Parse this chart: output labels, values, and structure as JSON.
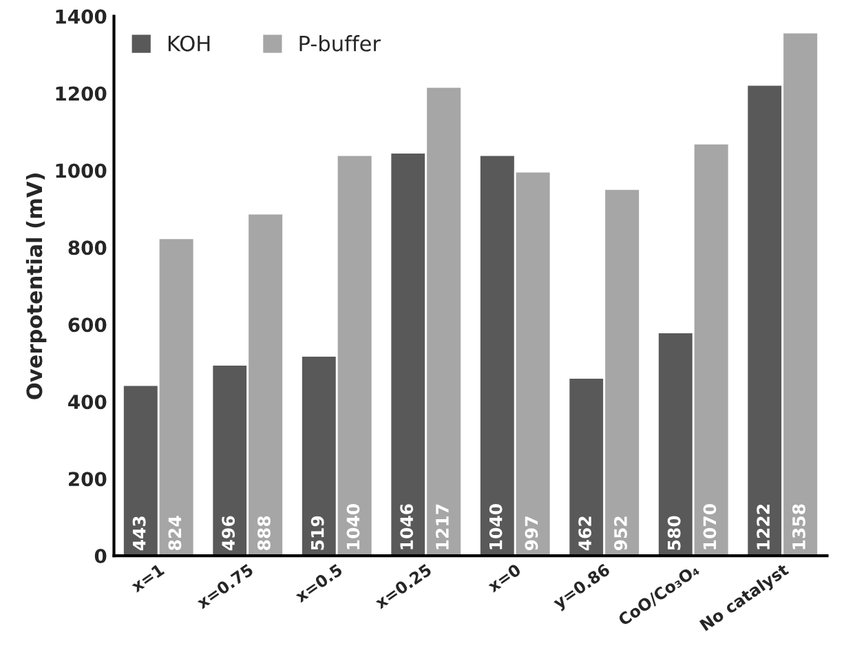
{
  "chart_data": {
    "type": "bar",
    "ylabel": "Overpotential (mV)",
    "categories": [
      "x=1",
      "x=0.75",
      "x=0.5",
      "x=0.25",
      "x=0",
      "y=0.86",
      "CoO/Co₃O₄",
      "No catalyst"
    ],
    "series": [
      {
        "name": "KOH",
        "color": "#595959",
        "values": [
          443,
          496,
          519,
          1046,
          1040,
          462,
          580,
          1222
        ]
      },
      {
        "name": "P-buffer",
        "color": "#a6a6a6",
        "values": [
          824,
          888,
          1040,
          1217,
          997,
          952,
          1070,
          1358
        ]
      }
    ],
    "ylim": [
      0,
      1400
    ],
    "yticks": [
      0,
      200,
      400,
      600,
      800,
      1000,
      1200,
      1400
    ],
    "grid": false,
    "legend": "top left",
    "data_labels": true
  }
}
